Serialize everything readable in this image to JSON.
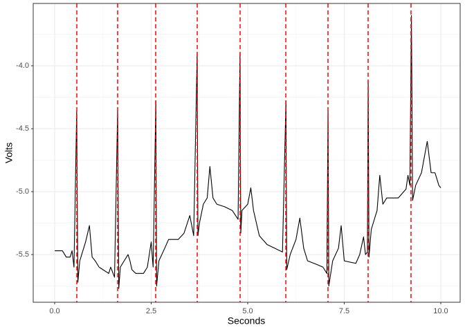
{
  "chart_data": {
    "type": "line",
    "xlabel": "Seconds",
    "ylabel": "Volts",
    "xlim": [
      -0.556,
      10.502
    ],
    "ylim": [
      -5.879,
      -3.505
    ],
    "xticks": [
      {
        "value": 0,
        "label": "0.0"
      },
      2.5,
      {
        "value": 5,
        "label": "5.0"
      },
      7.5,
      {
        "value": 10,
        "label": "10.0"
      }
    ],
    "yticks": [
      {
        "value": -4,
        "label": "-4.0"
      },
      -4.5,
      {
        "value": -5,
        "label": "-5.0"
      },
      -5.5
    ],
    "xminorticks": [
      1.25,
      3.75,
      6.25,
      8.75
    ],
    "yminorticks": [
      -3.75,
      -4.25,
      -4.75,
      -5.25,
      -5.75
    ],
    "grid": true,
    "x": [
      0,
      0.2,
      0.3,
      0.4,
      0.45,
      0.5,
      0.57,
      0.6,
      0.65,
      0.75,
      0.8,
      0.9,
      0.97,
      1.05,
      1.15,
      1.25,
      1.4,
      1.45,
      1.55,
      1.63,
      1.66,
      1.7,
      1.8,
      1.9,
      1.95,
      2.0,
      2.1,
      2.3,
      2.4,
      2.5,
      2.55,
      2.62,
      2.64,
      2.7,
      2.85,
      2.95,
      3.2,
      3.35,
      3.5,
      3.6,
      3.69,
      3.71,
      3.75,
      3.85,
      3.95,
      4.02,
      4.1,
      4.2,
      4.4,
      4.6,
      4.75,
      4.8,
      4.82,
      4.85,
      5.0,
      5.08,
      5.15,
      5.3,
      5.5,
      5.7,
      5.9,
      5.99,
      6.01,
      6.1,
      6.25,
      6.35,
      6.45,
      6.55,
      6.8,
      6.95,
      7.05,
      7.08,
      7.1,
      7.2,
      7.35,
      7.42,
      7.5,
      7.8,
      7.9,
      8.0,
      8.05,
      8.1,
      8.12,
      8.14,
      8.2,
      8.35,
      8.42,
      8.5,
      8.6,
      8.9,
      9.1,
      9.15,
      9.2,
      9.24,
      9.27,
      9.35,
      9.5,
      9.65,
      9.75,
      9.85,
      9.95,
      10.0
    ],
    "series": [
      {
        "color": "#000000",
        "values": [
          -5.47,
          -5.47,
          -5.52,
          -5.52,
          -5.47,
          -5.6,
          -4.36,
          -5.72,
          -5.55,
          -5.45,
          -5.4,
          -5.27,
          -5.52,
          -5.55,
          -5.6,
          -5.62,
          -5.65,
          -5.6,
          -5.68,
          -4.36,
          -5.77,
          -5.6,
          -5.55,
          -5.5,
          -5.55,
          -5.62,
          -5.65,
          -5.65,
          -5.6,
          -5.4,
          -5.6,
          -4.28,
          -5.75,
          -5.55,
          -5.45,
          -5.38,
          -5.38,
          -5.33,
          -5.19,
          -5.35,
          -3.9,
          -5.35,
          -5.25,
          -5.1,
          -5.05,
          -4.8,
          -5.05,
          -5.1,
          -5.12,
          -5.15,
          -5.22,
          -3.9,
          -5.33,
          -5.15,
          -5.1,
          -4.97,
          -5.15,
          -5.35,
          -5.42,
          -5.45,
          -5.48,
          -4.28,
          -5.62,
          -5.5,
          -5.38,
          -5.21,
          -5.45,
          -5.55,
          -5.58,
          -5.6,
          -5.65,
          -4.36,
          -5.75,
          -5.55,
          -5.45,
          -5.27,
          -5.55,
          -5.57,
          -5.5,
          -5.36,
          -5.5,
          -5.48,
          -4.12,
          -5.52,
          -5.3,
          -5.15,
          -4.87,
          -5.1,
          -5.05,
          -5.05,
          -4.98,
          -4.87,
          -4.95,
          -3.6,
          -5.07,
          -4.95,
          -4.85,
          -4.6,
          -4.85,
          -4.85,
          -4.95,
          -4.97
        ]
      }
    ],
    "vlines": {
      "color": "#ff0000",
      "dashed": true,
      "x": [
        0.573,
        1.631,
        2.616,
        3.692,
        4.803,
        5.986,
        7.079,
        8.118,
        9.229
      ]
    }
  }
}
